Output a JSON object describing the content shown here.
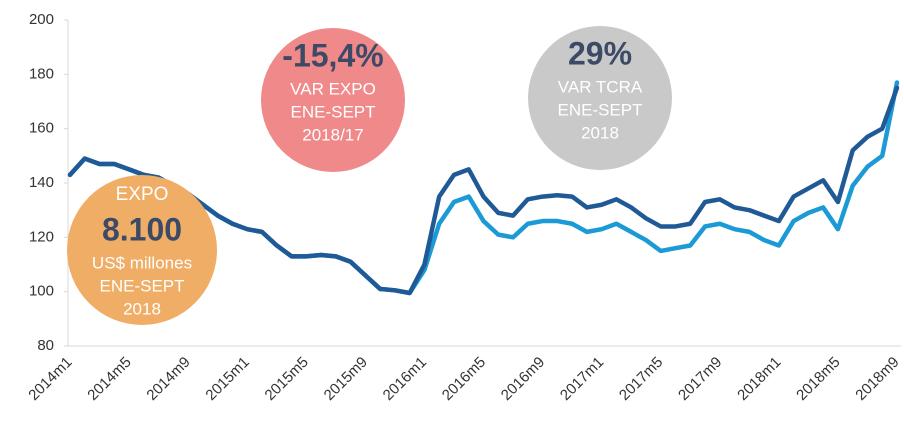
{
  "chart_data": {
    "type": "line",
    "categories": [
      "2014m1",
      null,
      null,
      null,
      "2014m5",
      null,
      null,
      null,
      "2014m9",
      null,
      null,
      null,
      "2015m1",
      null,
      null,
      null,
      "2015m5",
      null,
      null,
      null,
      "2015m9",
      null,
      null,
      null,
      "2016m1",
      null,
      null,
      null,
      "2016m5",
      null,
      null,
      null,
      "2016m9",
      null,
      null,
      null,
      "2017m1",
      null,
      null,
      null,
      "2017m5",
      null,
      null,
      null,
      "2017m9",
      null,
      null,
      null,
      "2018m1",
      null,
      null,
      null,
      "2018m5",
      null,
      null,
      null,
      "2018m9"
    ],
    "series": [
      {
        "color": "#1b9ad6",
        "values": [
          143,
          149,
          147,
          147,
          145,
          143,
          142,
          139,
          136,
          132,
          128,
          125,
          123,
          122,
          117,
          113,
          113,
          113.5,
          113,
          111,
          106,
          101,
          100.5,
          99.5,
          108,
          125,
          133,
          135,
          126,
          121,
          120,
          125,
          126,
          126,
          125,
          122,
          123,
          125,
          122,
          119,
          115,
          116,
          117,
          124,
          125,
          123,
          122,
          119,
          117,
          126,
          129,
          131,
          123,
          139,
          146,
          150,
          177
        ]
      },
      {
        "color": "#1f5a96",
        "values": [
          143,
          149,
          147,
          147,
          145,
          143,
          142,
          139,
          136,
          132,
          128,
          125,
          123,
          122,
          117,
          113,
          113,
          113.5,
          113,
          111,
          106,
          101,
          100.5,
          99.5,
          110,
          135,
          143,
          145,
          135,
          129,
          128,
          134,
          135,
          135.5,
          135,
          131,
          132,
          134,
          131,
          127,
          124,
          124,
          125,
          133,
          134,
          131,
          130,
          128,
          126,
          135,
          138,
          141,
          133,
          152,
          157,
          160,
          175
        ]
      }
    ],
    "ylim": [
      80,
      200
    ],
    "yticks": [
      80,
      100,
      120,
      140,
      160,
      180,
      200
    ],
    "annotations": [
      {
        "value": "-15,4%",
        "lines": [
          "VAR EXPO",
          "ENE-SEPT",
          "2018/17"
        ],
        "color": "#f08a8a"
      },
      {
        "value": "29%",
        "lines": [
          "VAR TCRA",
          "ENE-SEPT",
          "2018"
        ],
        "color": "#c9c9c9"
      },
      {
        "heading": "EXPO",
        "value": "8.100",
        "lines": [
          "US$ millones",
          "ENE-SEPT",
          "2018"
        ],
        "color": "#f0ad66"
      }
    ]
  }
}
